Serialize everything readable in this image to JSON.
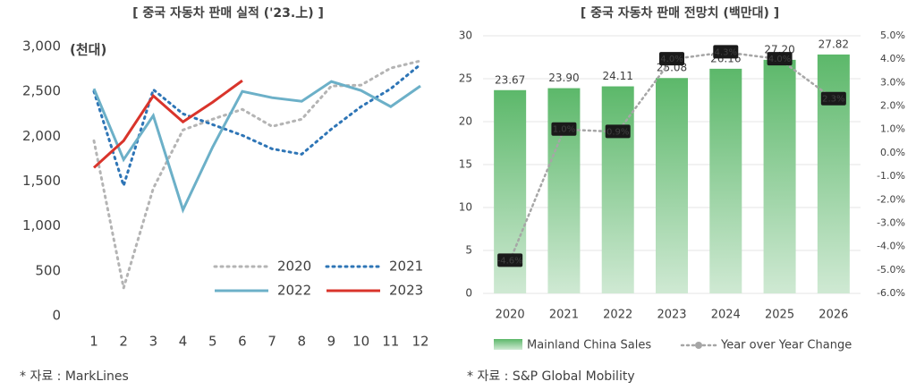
{
  "chart_data": [
    {
      "type": "line",
      "title": "[ 중국 자동차 판매 실적 ('23.上) ]",
      "unit_label": "(천대)",
      "categories": [
        "1",
        "2",
        "3",
        "4",
        "5",
        "6",
        "7",
        "8",
        "9",
        "10",
        "11",
        "12"
      ],
      "ylim": [
        0,
        3000
      ],
      "yticks": [
        0,
        {
          "value": 500,
          "label": "500"
        },
        {
          "value": 1000,
          "label": "1,000"
        },
        {
          "value": 1500,
          "label": "1,500"
        },
        {
          "value": 2000,
          "label": "2,000"
        },
        {
          "value": 2500,
          "label": "2,500"
        },
        {
          "value": 3000,
          "label": "3,000"
        }
      ],
      "grid": false,
      "series": [
        {
          "name": "2020",
          "color": "#b4b4b4",
          "dash": true,
          "values": [
            1950,
            310,
            1420,
            2070,
            2190,
            2300,
            2110,
            2190,
            2560,
            2570,
            2760,
            2840
          ]
        },
        {
          "name": "2021",
          "color": "#2e75b6",
          "dash": true,
          "values": [
            2500,
            1450,
            2520,
            2250,
            2130,
            2010,
            1860,
            1800,
            2080,
            2330,
            2530,
            2800
          ]
        },
        {
          "name": "2022",
          "color": "#6cb0c8",
          "dash": false,
          "values": [
            2530,
            1740,
            2230,
            1180,
            1880,
            2500,
            2430,
            2390,
            2610,
            2510,
            2330,
            2560
          ]
        },
        {
          "name": "2023",
          "color": "#d9342b",
          "dash": false,
          "values": [
            1650,
            1950,
            2450,
            2160,
            2380,
            2620,
            null,
            null,
            null,
            null,
            null,
            null
          ]
        }
      ],
      "source": "* 자료 : MarkLines"
    },
    {
      "type": "bar",
      "title": "[ 중국 자동차 판매 전망치 (백만대) ]",
      "categories": [
        "2020",
        "2021",
        "2022",
        "2023",
        "2024",
        "2025",
        "2026"
      ],
      "ylim": [
        0,
        30
      ],
      "yticks": [
        0,
        5,
        10,
        15,
        20,
        25,
        30
      ],
      "y2lim": [
        -6,
        5
      ],
      "y2ticks": [
        {
          "value": -6,
          "label": "-6.0%"
        },
        {
          "value": -5,
          "label": "-5.0%"
        },
        {
          "value": -4,
          "label": "-4.0%"
        },
        {
          "value": -3,
          "label": "-3.0%"
        },
        {
          "value": -2,
          "label": "-2.0%"
        },
        {
          "value": -1,
          "label": "-1.0%"
        },
        {
          "value": 0,
          "label": "0.0%"
        },
        {
          "value": 1,
          "label": "1.0%"
        },
        {
          "value": 2,
          "label": "2.0%"
        },
        {
          "value": 3,
          "label": "3.0%"
        },
        {
          "value": 4,
          "label": "4.0%"
        },
        {
          "value": 5,
          "label": "5.0%"
        }
      ],
      "grid": true,
      "series": [
        {
          "name": "Mainland China Sales",
          "color": "#5cb86a",
          "type": "bar",
          "values": [
            23.67,
            23.9,
            24.11,
            25.08,
            26.16,
            27.2,
            27.82
          ],
          "value_labels": [
            "23.67",
            "23.90",
            "24.11",
            "25.08",
            "26.16",
            "27.20",
            "27.82"
          ]
        },
        {
          "name": "Year over Year Change",
          "color": "#a6a6a6",
          "type": "line",
          "axis": "y2",
          "values": [
            -4.6,
            1.0,
            0.9,
            4.0,
            4.3,
            4.0,
            2.3
          ],
          "value_labels": [
            "-4.6%",
            "1.0%",
            "0.9%",
            "4.0%",
            "4.3%",
            "4.0%",
            "2.3%"
          ]
        }
      ],
      "source": "* 자료 : S&P Global Mobility"
    }
  ]
}
